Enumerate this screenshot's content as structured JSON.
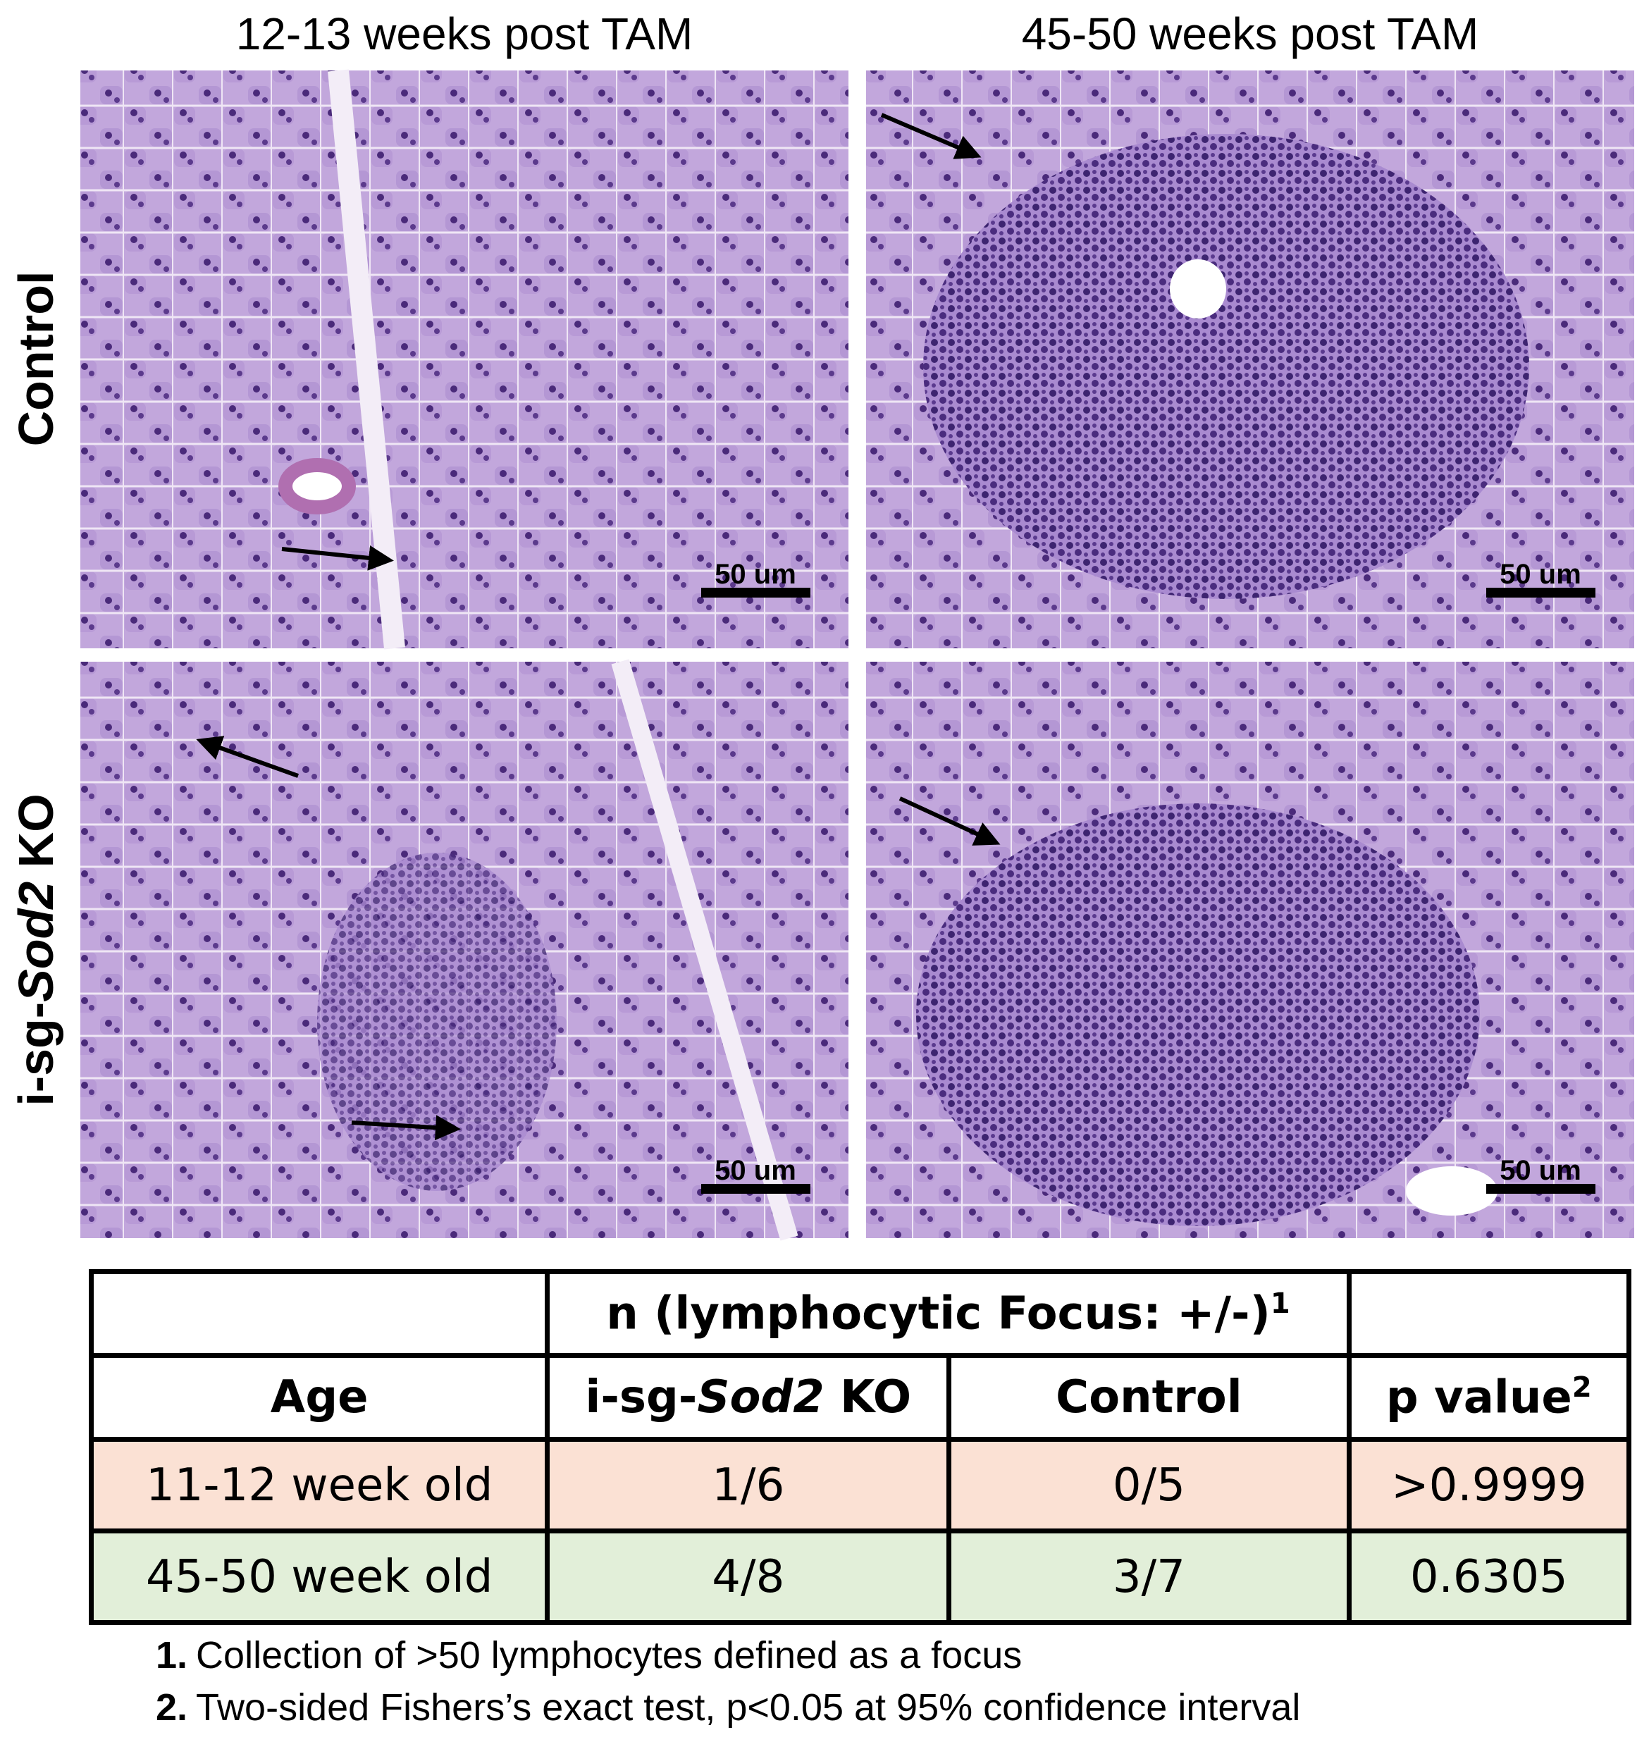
{
  "panels": {
    "column_titles": [
      "12-13 weeks post TAM",
      "45-50 weeks post TAM"
    ],
    "row_labels": [
      [
        "Control"
      ],
      [
        "i-sg-",
        "Sod2",
        " KO"
      ]
    ],
    "images": [
      {
        "scale_bar": "50 um"
      },
      {
        "scale_bar": "50 um"
      },
      {
        "scale_bar": "50 um"
      },
      {
        "scale_bar": "50 um"
      }
    ]
  },
  "table": {
    "group_header": {
      "text": "n (lymphocytic Focus: +/-)",
      "sup": "1"
    },
    "header": [
      [
        "Age"
      ],
      [
        "i-sg-",
        "Sod2",
        " KO"
      ],
      [
        "Control"
      ],
      [
        "p value",
        "2"
      ]
    ],
    "rows": [
      [
        "11-12 week old",
        "1/6",
        "0/5",
        ">0.9999"
      ],
      [
        "45-50 week old",
        "4/8",
        "3/7",
        "0.6305"
      ]
    ]
  },
  "footnotes": [
    {
      "num": "1.",
      "text": "Collection of >50 lymphocytes defined as a focus"
    },
    {
      "num": "2.",
      "text": "Two-sided Fishers’s exact test, p<0.05 at 95% confidence interval"
    }
  ]
}
